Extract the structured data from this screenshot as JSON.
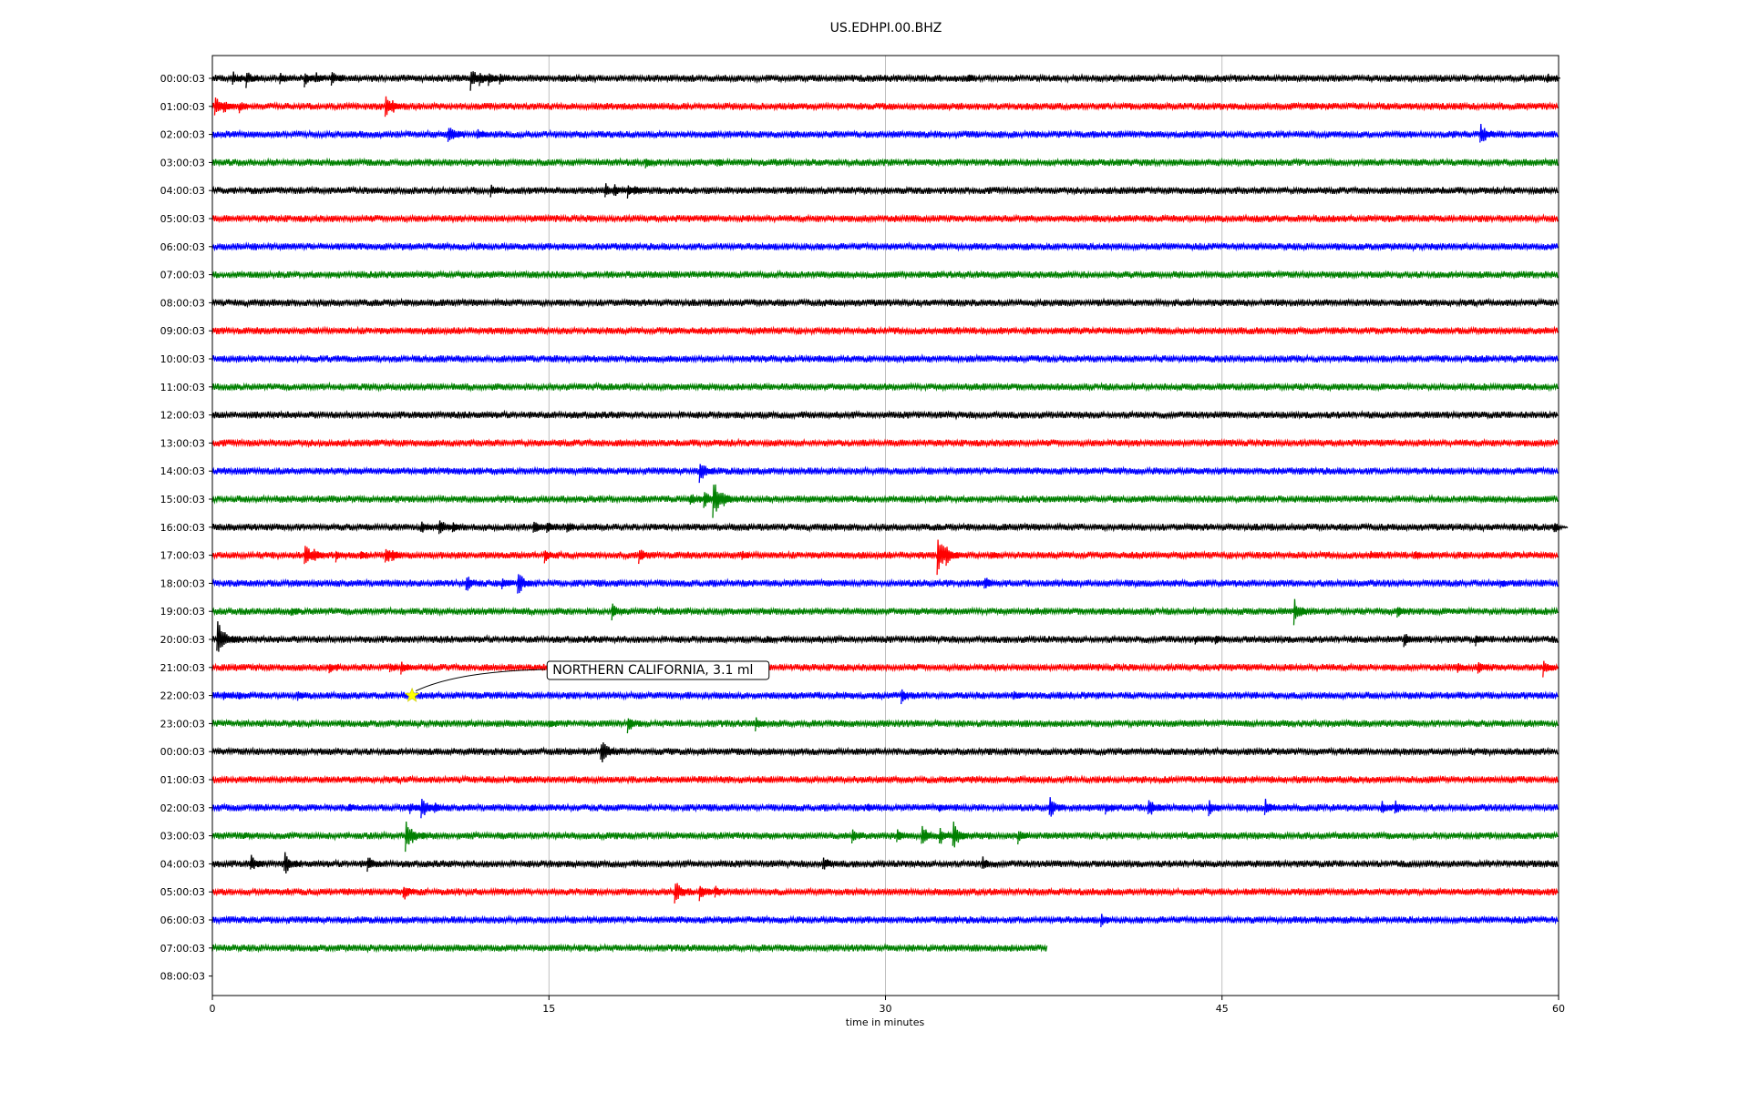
{
  "chart_data": {
    "type": "line",
    "title": "US.EDHPI.00.BHZ",
    "xlabel": "time in minutes",
    "ylabel": "",
    "xlim": [
      0,
      60
    ],
    "x_ticks": [
      0,
      15,
      30,
      45,
      60
    ],
    "x_tick_labels": [
      "0",
      "15",
      "30",
      "45",
      "60"
    ],
    "grid": "vertical",
    "colors": [
      "#000000",
      "#ff0000",
      "#0000ff",
      "#008000"
    ],
    "rows": [
      {
        "label": "00:00:03",
        "color": "#000000",
        "end": 60,
        "events": [
          [
            0.9,
            10
          ],
          [
            1.5,
            12
          ],
          [
            3,
            9
          ],
          [
            4.1,
            10
          ],
          [
            4.6,
            8
          ],
          [
            5.3,
            11
          ],
          [
            11.5,
            14
          ],
          [
            11.9,
            10
          ],
          [
            12.3,
            9
          ],
          [
            12.8,
            8
          ],
          [
            33.7,
            5
          ],
          [
            59.5,
            7
          ]
        ]
      },
      {
        "label": "01:00:03",
        "color": "#ff0000",
        "end": 60,
        "events": [
          [
            0.1,
            14
          ],
          [
            0.5,
            10
          ],
          [
            1.2,
            8
          ],
          [
            7.7,
            13
          ],
          [
            8,
            10
          ]
        ]
      },
      {
        "label": "02:00:03",
        "color": "#0000ff",
        "end": 60,
        "events": [
          [
            10.5,
            13
          ],
          [
            11.8,
            8
          ],
          [
            56.5,
            15
          ]
        ]
      },
      {
        "label": "03:00:03",
        "color": "#008000",
        "end": 60,
        "events": [
          [
            19.3,
            8
          ],
          [
            22.5,
            6
          ]
        ]
      },
      {
        "label": "04:00:03",
        "color": "#000000",
        "end": 60,
        "events": [
          [
            12.4,
            9
          ],
          [
            17.5,
            11
          ],
          [
            17.9,
            10
          ],
          [
            18.5,
            10
          ],
          [
            18.8,
            8
          ]
        ]
      },
      {
        "label": "05:00:03",
        "color": "#ff0000",
        "end": 60,
        "events": []
      },
      {
        "label": "06:00:03",
        "color": "#0000ff",
        "end": 60,
        "events": []
      },
      {
        "label": "07:00:03",
        "color": "#008000",
        "end": 60,
        "events": []
      },
      {
        "label": "08:00:03",
        "color": "#000000",
        "end": 60,
        "events": []
      },
      {
        "label": "09:00:03",
        "color": "#ff0000",
        "end": 60,
        "events": []
      },
      {
        "label": "10:00:03",
        "color": "#0000ff",
        "end": 60,
        "events": []
      },
      {
        "label": "11:00:03",
        "color": "#008000",
        "end": 60,
        "events": []
      },
      {
        "label": "12:00:03",
        "color": "#000000",
        "end": 60,
        "events": []
      },
      {
        "label": "13:00:03",
        "color": "#ff0000",
        "end": 60,
        "events": []
      },
      {
        "label": "14:00:03",
        "color": "#0000ff",
        "end": 60,
        "events": [
          [
            21.7,
            15
          ]
        ]
      },
      {
        "label": "15:00:03",
        "color": "#008000",
        "end": 60,
        "events": [
          [
            21.3,
            10
          ],
          [
            21.9,
            12
          ],
          [
            22.3,
            22
          ],
          [
            22.8,
            9
          ]
        ]
      },
      {
        "label": "16:00:03",
        "color": "#000000",
        "end": 60,
        "events": [
          [
            9.3,
            9
          ],
          [
            10.1,
            12
          ],
          [
            10.7,
            9
          ],
          [
            14.3,
            10
          ],
          [
            14.9,
            9
          ],
          [
            15.8,
            8
          ],
          [
            59.8,
            8
          ]
        ]
      },
      {
        "label": "17:00:03",
        "color": "#ff0000",
        "end": 60,
        "events": [
          [
            4.1,
            16
          ],
          [
            4.5,
            10
          ],
          [
            5.5,
            8
          ],
          [
            6.6,
            8
          ],
          [
            7.7,
            13
          ],
          [
            8,
            10
          ],
          [
            14.8,
            9
          ],
          [
            19,
            11
          ],
          [
            23.6,
            6
          ],
          [
            32.3,
            22
          ],
          [
            32.7,
            12
          ],
          [
            34.7,
            6
          ],
          [
            51.6,
            6
          ],
          [
            53.6,
            6
          ]
        ]
      },
      {
        "label": "18:00:03",
        "color": "#0000ff",
        "end": 60,
        "events": [
          [
            11.3,
            12
          ],
          [
            12.9,
            9
          ],
          [
            13.6,
            15
          ],
          [
            34.4,
            10
          ],
          [
            57.4,
            5
          ]
        ]
      },
      {
        "label": "19:00:03",
        "color": "#008000",
        "end": 60,
        "events": [
          [
            3.5,
            7
          ],
          [
            17.8,
            11
          ],
          [
            48.2,
            16
          ],
          [
            52.8,
            8
          ]
        ]
      },
      {
        "label": "20:00:03",
        "color": "#000000",
        "end": 60,
        "events": [
          [
            0.2,
            22
          ],
          [
            24.7,
            6
          ],
          [
            43.8,
            6
          ],
          [
            44.7,
            8
          ],
          [
            53.1,
            10
          ],
          [
            56.3,
            8
          ]
        ]
      },
      {
        "label": "21:00:03",
        "color": "#ff0000",
        "end": 60,
        "events": [
          [
            5.2,
            8
          ],
          [
            7.9,
            7
          ],
          [
            8.4,
            9
          ],
          [
            55.5,
            7
          ],
          [
            56.4,
            10
          ],
          [
            59.3,
            11
          ]
        ]
      },
      {
        "label": "22:00:03",
        "color": "#0000ff",
        "end": 60,
        "events": [
          [
            0.5,
            7
          ],
          [
            1.2,
            6
          ],
          [
            3.8,
            6
          ],
          [
            30.7,
            10
          ],
          [
            35.7,
            7
          ]
        ]
      },
      {
        "label": "23:00:03",
        "color": "#008000",
        "end": 60,
        "events": [
          [
            15,
            6
          ],
          [
            18.5,
            12
          ],
          [
            24.2,
            9
          ]
        ]
      },
      {
        "label": "00:00:03",
        "color": "#000000",
        "end": 60,
        "events": [
          [
            17.3,
            17
          ]
        ]
      },
      {
        "label": "01:00:03",
        "color": "#ff0000",
        "end": 60,
        "events": []
      },
      {
        "label": "02:00:03",
        "color": "#0000ff",
        "end": 60,
        "events": [
          [
            6.1,
            6
          ],
          [
            8.8,
            9
          ],
          [
            9.3,
            16
          ],
          [
            9.9,
            8
          ],
          [
            14.2,
            6
          ],
          [
            29.2,
            6
          ],
          [
            32.4,
            6
          ],
          [
            37.3,
            14
          ],
          [
            39.8,
            8
          ],
          [
            41.7,
            14
          ],
          [
            44.4,
            10
          ],
          [
            46.9,
            12
          ],
          [
            52.1,
            9
          ],
          [
            52.7,
            10
          ]
        ]
      },
      {
        "label": "03:00:03",
        "color": "#008000",
        "end": 60,
        "events": [
          [
            1.4,
            6
          ],
          [
            8.6,
            20
          ],
          [
            28.5,
            9
          ],
          [
            30.5,
            10
          ],
          [
            31.6,
            14
          ],
          [
            32.4,
            12
          ],
          [
            33,
            18
          ],
          [
            35.9,
            10
          ]
        ]
      },
      {
        "label": "04:00:03",
        "color": "#000000",
        "end": 60,
        "events": [
          [
            1.7,
            12
          ],
          [
            3.2,
            15
          ],
          [
            6.9,
            11
          ],
          [
            27.2,
            11
          ],
          [
            34.3,
            10
          ]
        ]
      },
      {
        "label": "05:00:03",
        "color": "#ff0000",
        "end": 60,
        "events": [
          [
            8.5,
            12
          ],
          [
            20.6,
            16
          ],
          [
            21.7,
            12
          ],
          [
            22.4,
            8
          ]
        ]
      },
      {
        "label": "06:00:03",
        "color": "#0000ff",
        "end": 60,
        "events": [
          [
            39.6,
            9
          ]
        ]
      },
      {
        "label": "07:00:03",
        "color": "#008000",
        "end": 37.2,
        "events": []
      },
      {
        "label": "08:00:03",
        "color": "#000000",
        "end": 0,
        "events": []
      }
    ],
    "annotations": [
      {
        "text": "NORTHERN CALIFORNIA, 3.1 ml",
        "row": 22,
        "x": 8.9,
        "marker": "star",
        "marker_color": "#ffff00",
        "label_x": 15,
        "label_y_row": 21.2
      }
    ]
  }
}
